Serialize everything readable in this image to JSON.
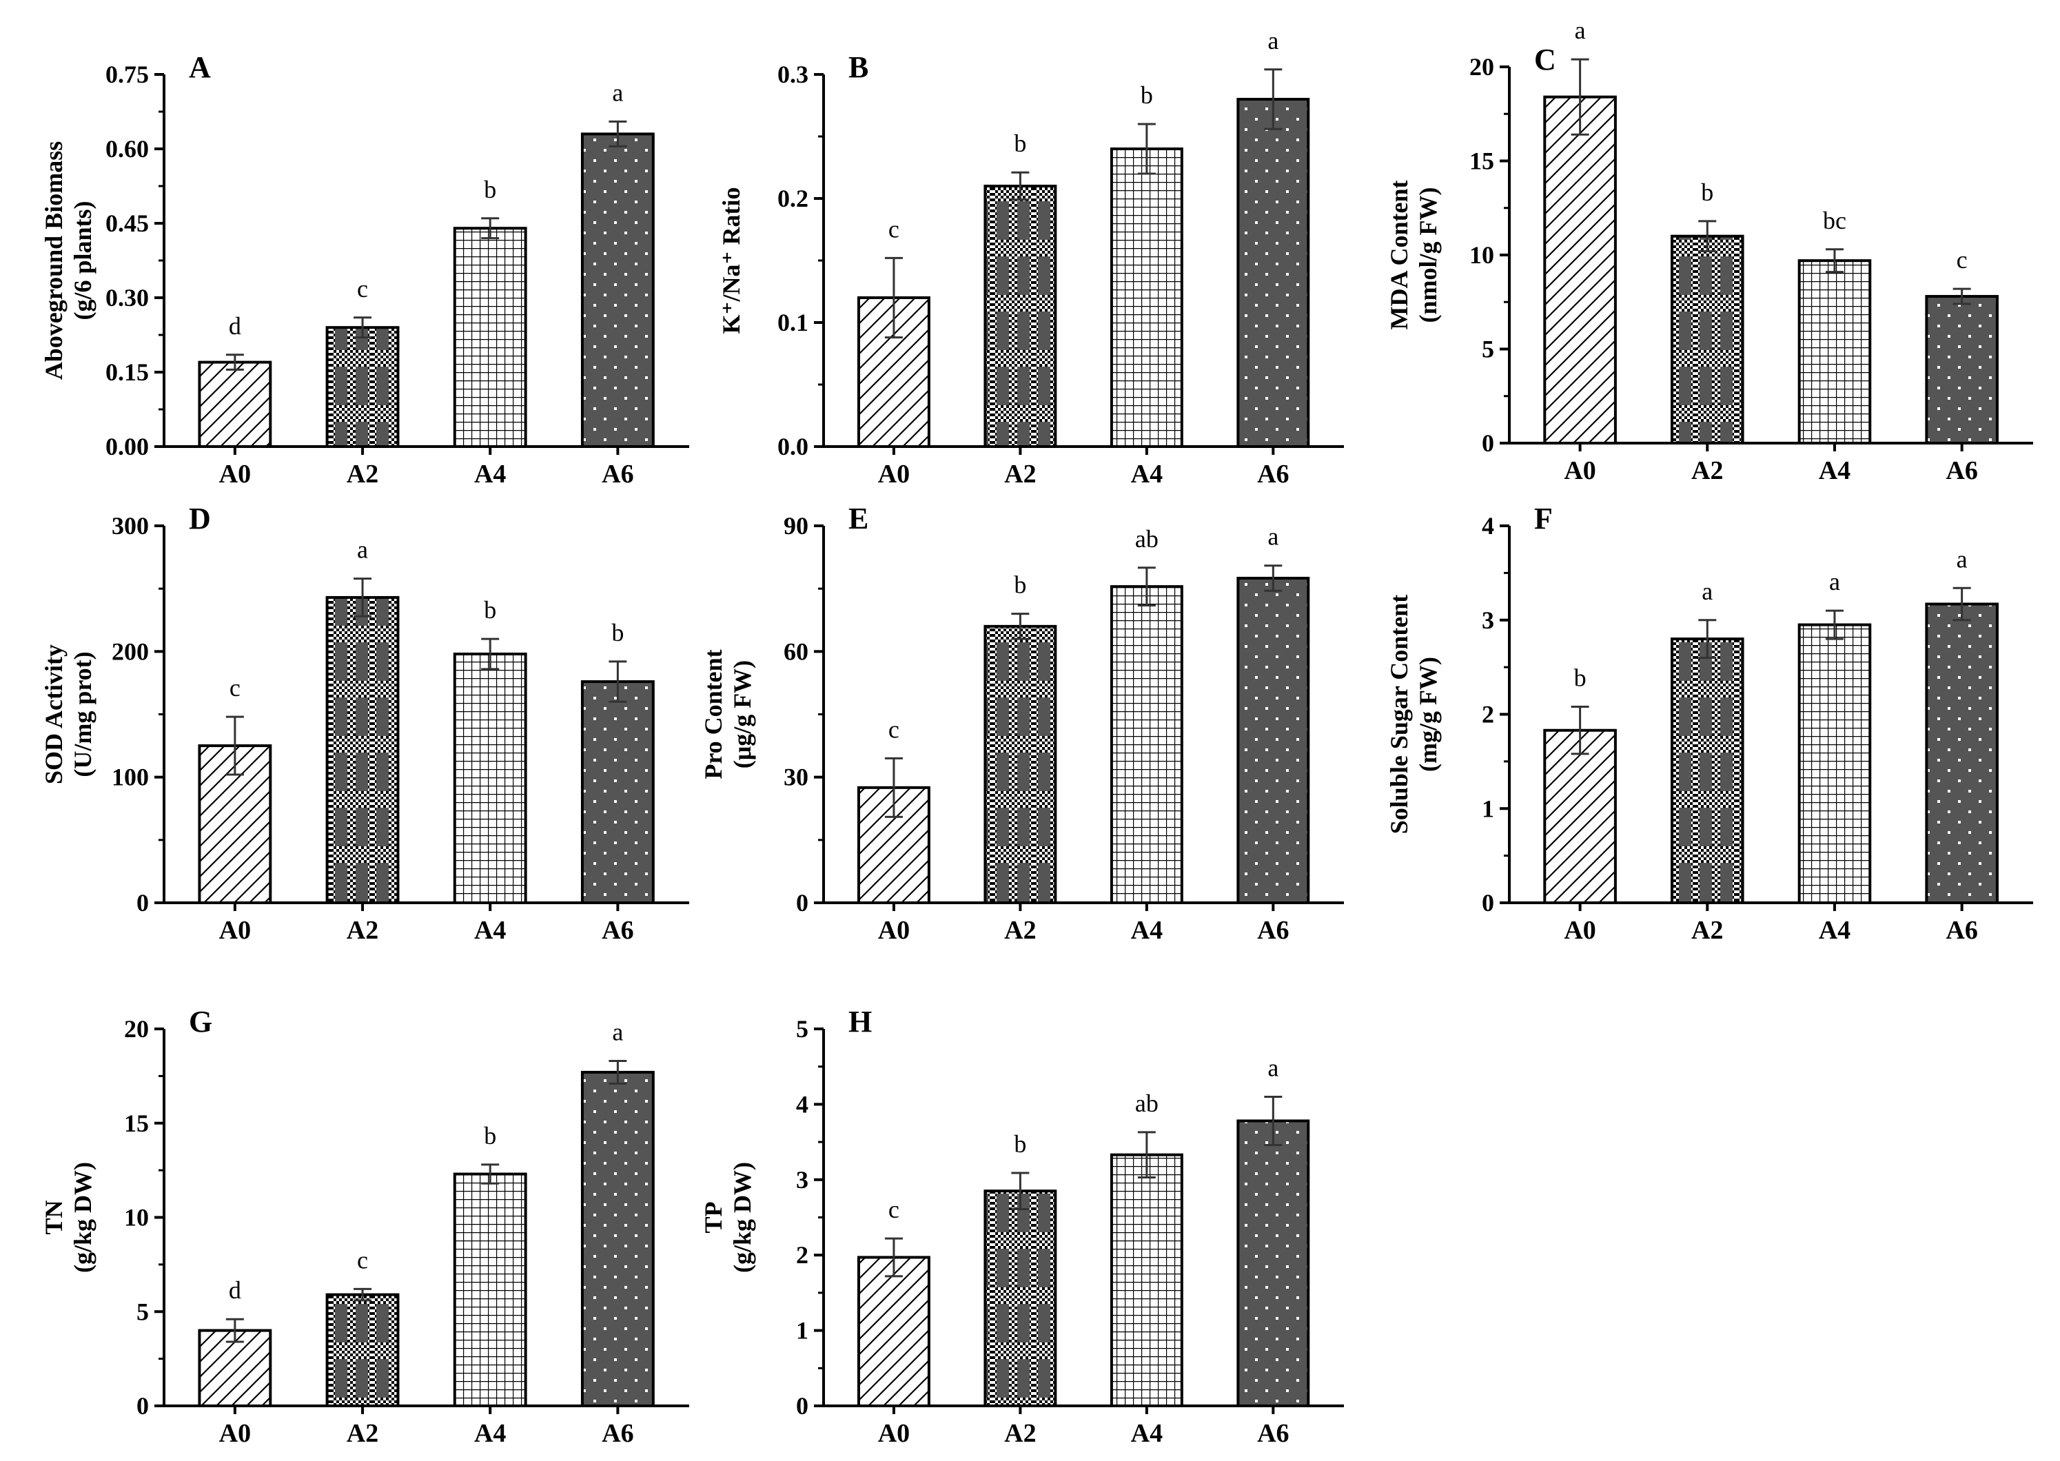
{
  "colors": {
    "axis": "#000000",
    "bar_stroke": "#000000",
    "dark_fill": "#555555",
    "error_bar": "#333333"
  },
  "chart_data": [
    {
      "id": "A",
      "type": "bar",
      "categories": [
        "A0",
        "A2",
        "A4",
        "A6"
      ],
      "values": [
        0.17,
        0.24,
        0.44,
        0.63
      ],
      "errors": [
        0.015,
        0.02,
        0.02,
        0.025
      ],
      "significance": [
        "d",
        "c",
        "b",
        "a"
      ],
      "ylabel": [
        "Aboveground Biomass",
        "(g/6 plants)"
      ],
      "ylim": [
        0,
        0.75
      ],
      "yticks": [
        "0.00",
        "0.15",
        "0.30",
        "0.45",
        "0.60",
        "0.75"
      ]
    },
    {
      "id": "B",
      "type": "bar",
      "categories": [
        "A0",
        "A2",
        "A4",
        "A6"
      ],
      "values": [
        0.12,
        0.21,
        0.24,
        0.28
      ],
      "errors": [
        0.032,
        0.011,
        0.02,
        0.024
      ],
      "significance": [
        "c",
        "b",
        "b",
        "a"
      ],
      "ylabel": [
        "K⁺/Na⁺ Ratio"
      ],
      "ylim": [
        0,
        0.3
      ],
      "yticks": [
        "0.0",
        "0.1",
        "0.2",
        "0.3"
      ]
    },
    {
      "id": "C",
      "type": "bar",
      "categories": [
        "A0",
        "A2",
        "A4",
        "A6"
      ],
      "values": [
        18.4,
        11.0,
        9.7,
        7.8
      ],
      "errors": [
        2.0,
        0.8,
        0.6,
        0.4
      ],
      "significance": [
        "a",
        "b",
        "bc",
        "c"
      ],
      "ylabel": [
        "MDA Content",
        "(nmol/g FW)"
      ],
      "ylim": [
        0,
        20
      ],
      "yticks": [
        "0",
        "5",
        "10",
        "15",
        "20"
      ]
    },
    {
      "id": "D",
      "type": "bar",
      "categories": [
        "A0",
        "A2",
        "A4",
        "A6"
      ],
      "values": [
        125,
        243,
        198,
        176
      ],
      "errors": [
        23,
        15,
        12,
        16
      ],
      "significance": [
        "c",
        "a",
        "b",
        "b"
      ],
      "ylabel": [
        "SOD Activity",
        "(U/mg prot)"
      ],
      "ylim": [
        0,
        300
      ],
      "yticks": [
        "0",
        "100",
        "200",
        "300"
      ]
    },
    {
      "id": "E",
      "type": "bar",
      "categories": [
        "A0",
        "A2",
        "A4",
        "A6"
      ],
      "values": [
        27.5,
        66,
        75.5,
        77.5
      ],
      "errors": [
        7,
        3,
        4.5,
        3
      ],
      "significance": [
        "c",
        "b",
        "ab",
        "a"
      ],
      "ylabel": [
        "Pro Content",
        "(μg/g FW)"
      ],
      "ylim": [
        0,
        90
      ],
      "yticks": [
        "0",
        "30",
        "60",
        "90"
      ]
    },
    {
      "id": "F",
      "type": "bar",
      "categories": [
        "A0",
        "A2",
        "A4",
        "A6"
      ],
      "values": [
        1.83,
        2.8,
        2.95,
        3.17
      ],
      "errors": [
        0.25,
        0.2,
        0.15,
        0.17
      ],
      "significance": [
        "b",
        "a",
        "a",
        "a"
      ],
      "ylabel": [
        "Soluble Sugar Content",
        "(mg/g FW)"
      ],
      "ylim": [
        0,
        4
      ],
      "yticks": [
        "0",
        "1",
        "2",
        "3",
        "4"
      ]
    },
    {
      "id": "G",
      "type": "bar",
      "categories": [
        "A0",
        "A2",
        "A4",
        "A6"
      ],
      "values": [
        4.0,
        5.9,
        12.3,
        17.7
      ],
      "errors": [
        0.6,
        0.3,
        0.5,
        0.6
      ],
      "significance": [
        "d",
        "c",
        "b",
        "a"
      ],
      "ylabel": [
        "TN",
        "(g/kg DW)"
      ],
      "ylim": [
        0,
        20
      ],
      "yticks": [
        "0",
        "5",
        "10",
        "15",
        "20"
      ]
    },
    {
      "id": "H",
      "type": "bar",
      "categories": [
        "A0",
        "A2",
        "A4",
        "A6"
      ],
      "values": [
        1.97,
        2.85,
        3.33,
        3.78
      ],
      "errors": [
        0.25,
        0.24,
        0.3,
        0.32
      ],
      "significance": [
        "c",
        "b",
        "ab",
        "a"
      ],
      "ylabel": [
        "TP",
        "(g/kg DW)"
      ],
      "ylim": [
        0,
        5
      ],
      "yticks": [
        "0",
        "1",
        "2",
        "3",
        "4",
        "5"
      ]
    }
  ]
}
